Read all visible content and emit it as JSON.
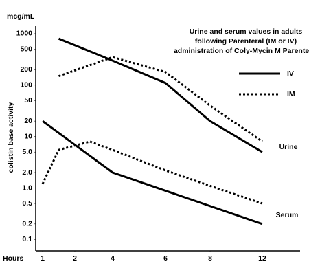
{
  "chart_data": {
    "type": "line",
    "title": [
      "Urine and serum values in adults",
      "following Parenteral (IM or IV)",
      "administration of Coly-Mycin M Parenteral"
    ],
    "y_unit": "mcg/mL",
    "ylabel": "colistin base activity",
    "xlabel": "Hours",
    "log_y": true,
    "ylim": [
      0.06,
      1400
    ],
    "yticks": [
      1000,
      500,
      200,
      100,
      50,
      20,
      10,
      {
        "value": 5,
        "label": "5.0"
      },
      {
        "value": 2,
        "label": "2.0"
      },
      {
        "value": 1,
        "label": "1.0"
      },
      0.5,
      0.2,
      0.1
    ],
    "xticks": [
      1,
      2,
      4,
      6,
      8,
      12
    ],
    "color": "#000000",
    "legend": [
      {
        "name": "IV",
        "style": "solid"
      },
      {
        "name": "IM",
        "style": "dotted"
      }
    ],
    "groups": [
      {
        "name": "Urine",
        "series": [
          {
            "x": [
              1.5,
              4,
              6,
              8,
              12
            ],
            "values": [
              800,
              300,
              110,
              20,
              5
            ]
          },
          {
            "x": [
              1.5,
              4,
              6,
              8,
              12
            ],
            "values": [
              150,
              350,
              180,
              40,
              8
            ]
          }
        ]
      },
      {
        "name": "Serum",
        "series": [
          {
            "x": [
              1,
              4,
              12
            ],
            "values": [
              20,
              2,
              0.2
            ]
          },
          {
            "x": [
              1,
              1.5,
              2.8,
              4,
              6,
              8,
              12
            ],
            "values": [
              1.2,
              5.5,
              8,
              5.5,
              2.2,
              1.1,
              0.5
            ]
          }
        ]
      }
    ]
  }
}
